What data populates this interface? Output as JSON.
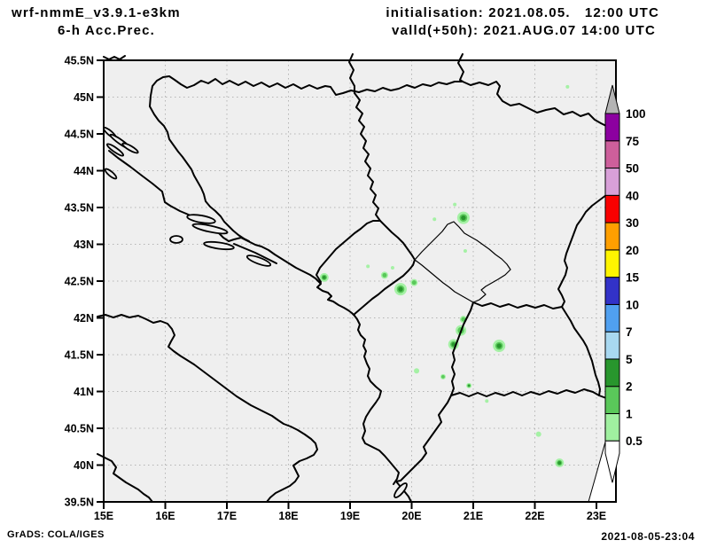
{
  "header": {
    "model_title": "wrf-nmmE_v3.9.1-e3km",
    "subtitle": "6-h Acc.Prec.",
    "init_label": "initialisation: 2021.08.05.   12:00 UTC",
    "valid_label": "valld(+50h): 2021.AUG.07 14:00 UTC"
  },
  "footer": {
    "credit": "GrADS: COLA/IGES",
    "timestamp": "2021-08-05-23:04"
  },
  "colors": {
    "map_background": "#efefef",
    "grid": "#b4b4b4",
    "line": "#000000",
    "page": "#ffffff",
    "precip_light": "#a0f0a0",
    "precip_medium": "#5ac85a",
    "precip_dark": "#28962d"
  },
  "chart_data": {
    "type": "heatmap",
    "title": "wrf-nmmE_v3.9.1-e3km 6-h Acc.Prec.",
    "region": "Adriatic / western Balkans lat-lon map",
    "grid": true,
    "x_axis": {
      "ticks": [
        15,
        16,
        17,
        18,
        19,
        20,
        21,
        22,
        23
      ],
      "tick_labels": [
        "15E",
        "16E",
        "17E",
        "18E",
        "19E",
        "20E",
        "21E",
        "22E",
        "23E"
      ],
      "range": [
        15,
        23.32
      ]
    },
    "y_axis": {
      "ticks": [
        45.5,
        45,
        44.5,
        44,
        43.5,
        43,
        42.5,
        42,
        41.5,
        41,
        40.5,
        40,
        39.5
      ],
      "tick_labels": [
        "45.5N",
        "45N",
        "44.5N",
        "44N",
        "43.5N",
        "43N",
        "42.5N",
        "42N",
        "41.5N",
        "41N",
        "40.5N",
        "40N",
        "39.5N"
      ],
      "range": [
        39.5,
        45.5
      ]
    },
    "colorbar": {
      "levels": [
        0.5,
        1,
        2,
        5,
        7,
        10,
        15,
        20,
        30,
        40,
        50,
        75,
        100
      ],
      "label_values_top_to_bottom": [
        "100",
        "75",
        "50",
        "40",
        "30",
        "20",
        "15",
        "10",
        "7",
        "5",
        "2",
        "1",
        "0.5"
      ],
      "segment_colors_low_to_high": [
        "#a0f0a0",
        "#5ac85a",
        "#28962d",
        "#a8d8f0",
        "#50a0f0",
        "#3232c8",
        "#fff500",
        "#ff9f00",
        "#f80000",
        "#d8a0d8",
        "#cd5f9b",
        "#8c00a0"
      ],
      "under_color": "#ffffff",
      "over_color": "#b4b4b4",
      "position": "right"
    },
    "precip_cells": [
      {
        "lon": 18.58,
        "lat": 42.55,
        "max_mm": 5,
        "r": 5
      },
      {
        "lon": 20.84,
        "lat": 43.36,
        "max_mm": 5,
        "r": 7
      },
      {
        "lon": 20.37,
        "lat": 43.34,
        "max_mm": 1,
        "r": 2
      },
      {
        "lon": 20.7,
        "lat": 43.54,
        "max_mm": 1,
        "r": 2
      },
      {
        "lon": 19.56,
        "lat": 42.58,
        "max_mm": 2,
        "r": 4
      },
      {
        "lon": 19.82,
        "lat": 42.39,
        "max_mm": 5,
        "r": 7
      },
      {
        "lon": 20.04,
        "lat": 42.48,
        "max_mm": 2,
        "r": 4
      },
      {
        "lon": 19.29,
        "lat": 42.7,
        "max_mm": 1,
        "r": 2
      },
      {
        "lon": 19.69,
        "lat": 42.68,
        "max_mm": 1,
        "r": 2
      },
      {
        "lon": 20.87,
        "lat": 42.91,
        "max_mm": 1,
        "r": 2
      },
      {
        "lon": 20.84,
        "lat": 41.98,
        "max_mm": 2,
        "r": 4
      },
      {
        "lon": 20.8,
        "lat": 41.83,
        "max_mm": 2,
        "r": 6
      },
      {
        "lon": 20.68,
        "lat": 41.64,
        "max_mm": 5,
        "r": 6
      },
      {
        "lon": 21.42,
        "lat": 41.62,
        "max_mm": 5,
        "r": 7
      },
      {
        "lon": 20.08,
        "lat": 41.28,
        "max_mm": 1,
        "r": 3
      },
      {
        "lon": 20.51,
        "lat": 41.2,
        "max_mm": 2,
        "r": 3
      },
      {
        "lon": 20.93,
        "lat": 41.08,
        "max_mm": 5,
        "r": 3
      },
      {
        "lon": 21.22,
        "lat": 40.87,
        "max_mm": 1,
        "r": 2
      },
      {
        "lon": 22.06,
        "lat": 40.42,
        "max_mm": 1,
        "r": 3
      },
      {
        "lon": 22.4,
        "lat": 40.03,
        "max_mm": 5,
        "r": 5
      },
      {
        "lon": 22.53,
        "lat": 45.14,
        "max_mm": 1,
        "r": 2
      }
    ]
  }
}
